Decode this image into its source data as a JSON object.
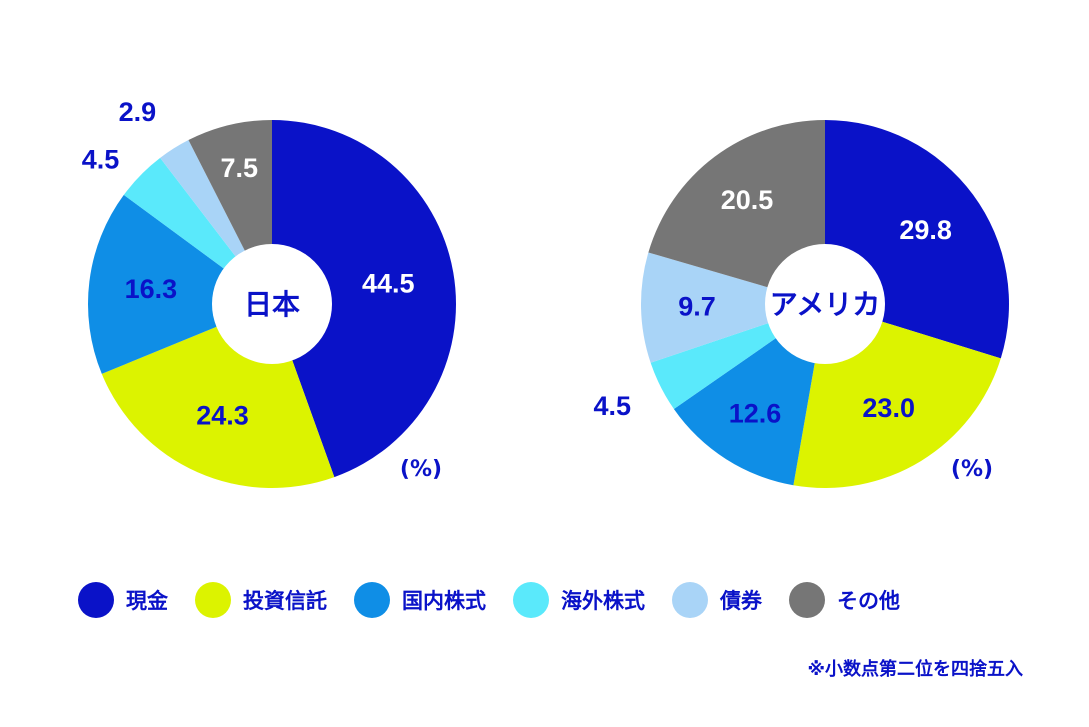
{
  "chart_data": [
    {
      "type": "pie",
      "center_label": "日本",
      "unit": "(%)",
      "slices": [
        {
          "category": "現金",
          "value": 44.5,
          "label": "44.5"
        },
        {
          "category": "投資信託",
          "value": 24.3,
          "label": "24.3"
        },
        {
          "category": "国内株式",
          "value": 16.3,
          "label": "16.3"
        },
        {
          "category": "海外株式",
          "value": 4.5,
          "label": "4.5"
        },
        {
          "category": "債券",
          "value": 2.9,
          "label": "2.9"
        },
        {
          "category": "その他",
          "value": 7.5,
          "label": "7.5"
        }
      ]
    },
    {
      "type": "pie",
      "center_label": "アメリカ",
      "unit": "(%)",
      "slices": [
        {
          "category": "現金",
          "value": 29.8,
          "label": "29.8"
        },
        {
          "category": "投資信託",
          "value": 23.0,
          "label": "23.0"
        },
        {
          "category": "国内株式",
          "value": 12.6,
          "label": "12.6"
        },
        {
          "category": "海外株式",
          "value": 4.5,
          "label": "4.5"
        },
        {
          "category": "債券",
          "value": 9.7,
          "label": "9.7"
        },
        {
          "category": "その他",
          "value": 20.5,
          "label": "20.5"
        }
      ]
    }
  ],
  "legend": [
    {
      "label": "現金",
      "color": "#0a12c8"
    },
    {
      "label": "投資信託",
      "color": "#dcf300"
    },
    {
      "label": "国内株式",
      "color": "#0f8ee6"
    },
    {
      "label": "海外株式",
      "color": "#5ae9fb"
    },
    {
      "label": "債券",
      "color": "#a9d4f7"
    },
    {
      "label": "その他",
      "color": "#767676"
    }
  ],
  "note": "※小数点第二位を四捨五入",
  "colors": {
    "label_dark": "#0a12c8",
    "label_light": "#ffffff"
  }
}
